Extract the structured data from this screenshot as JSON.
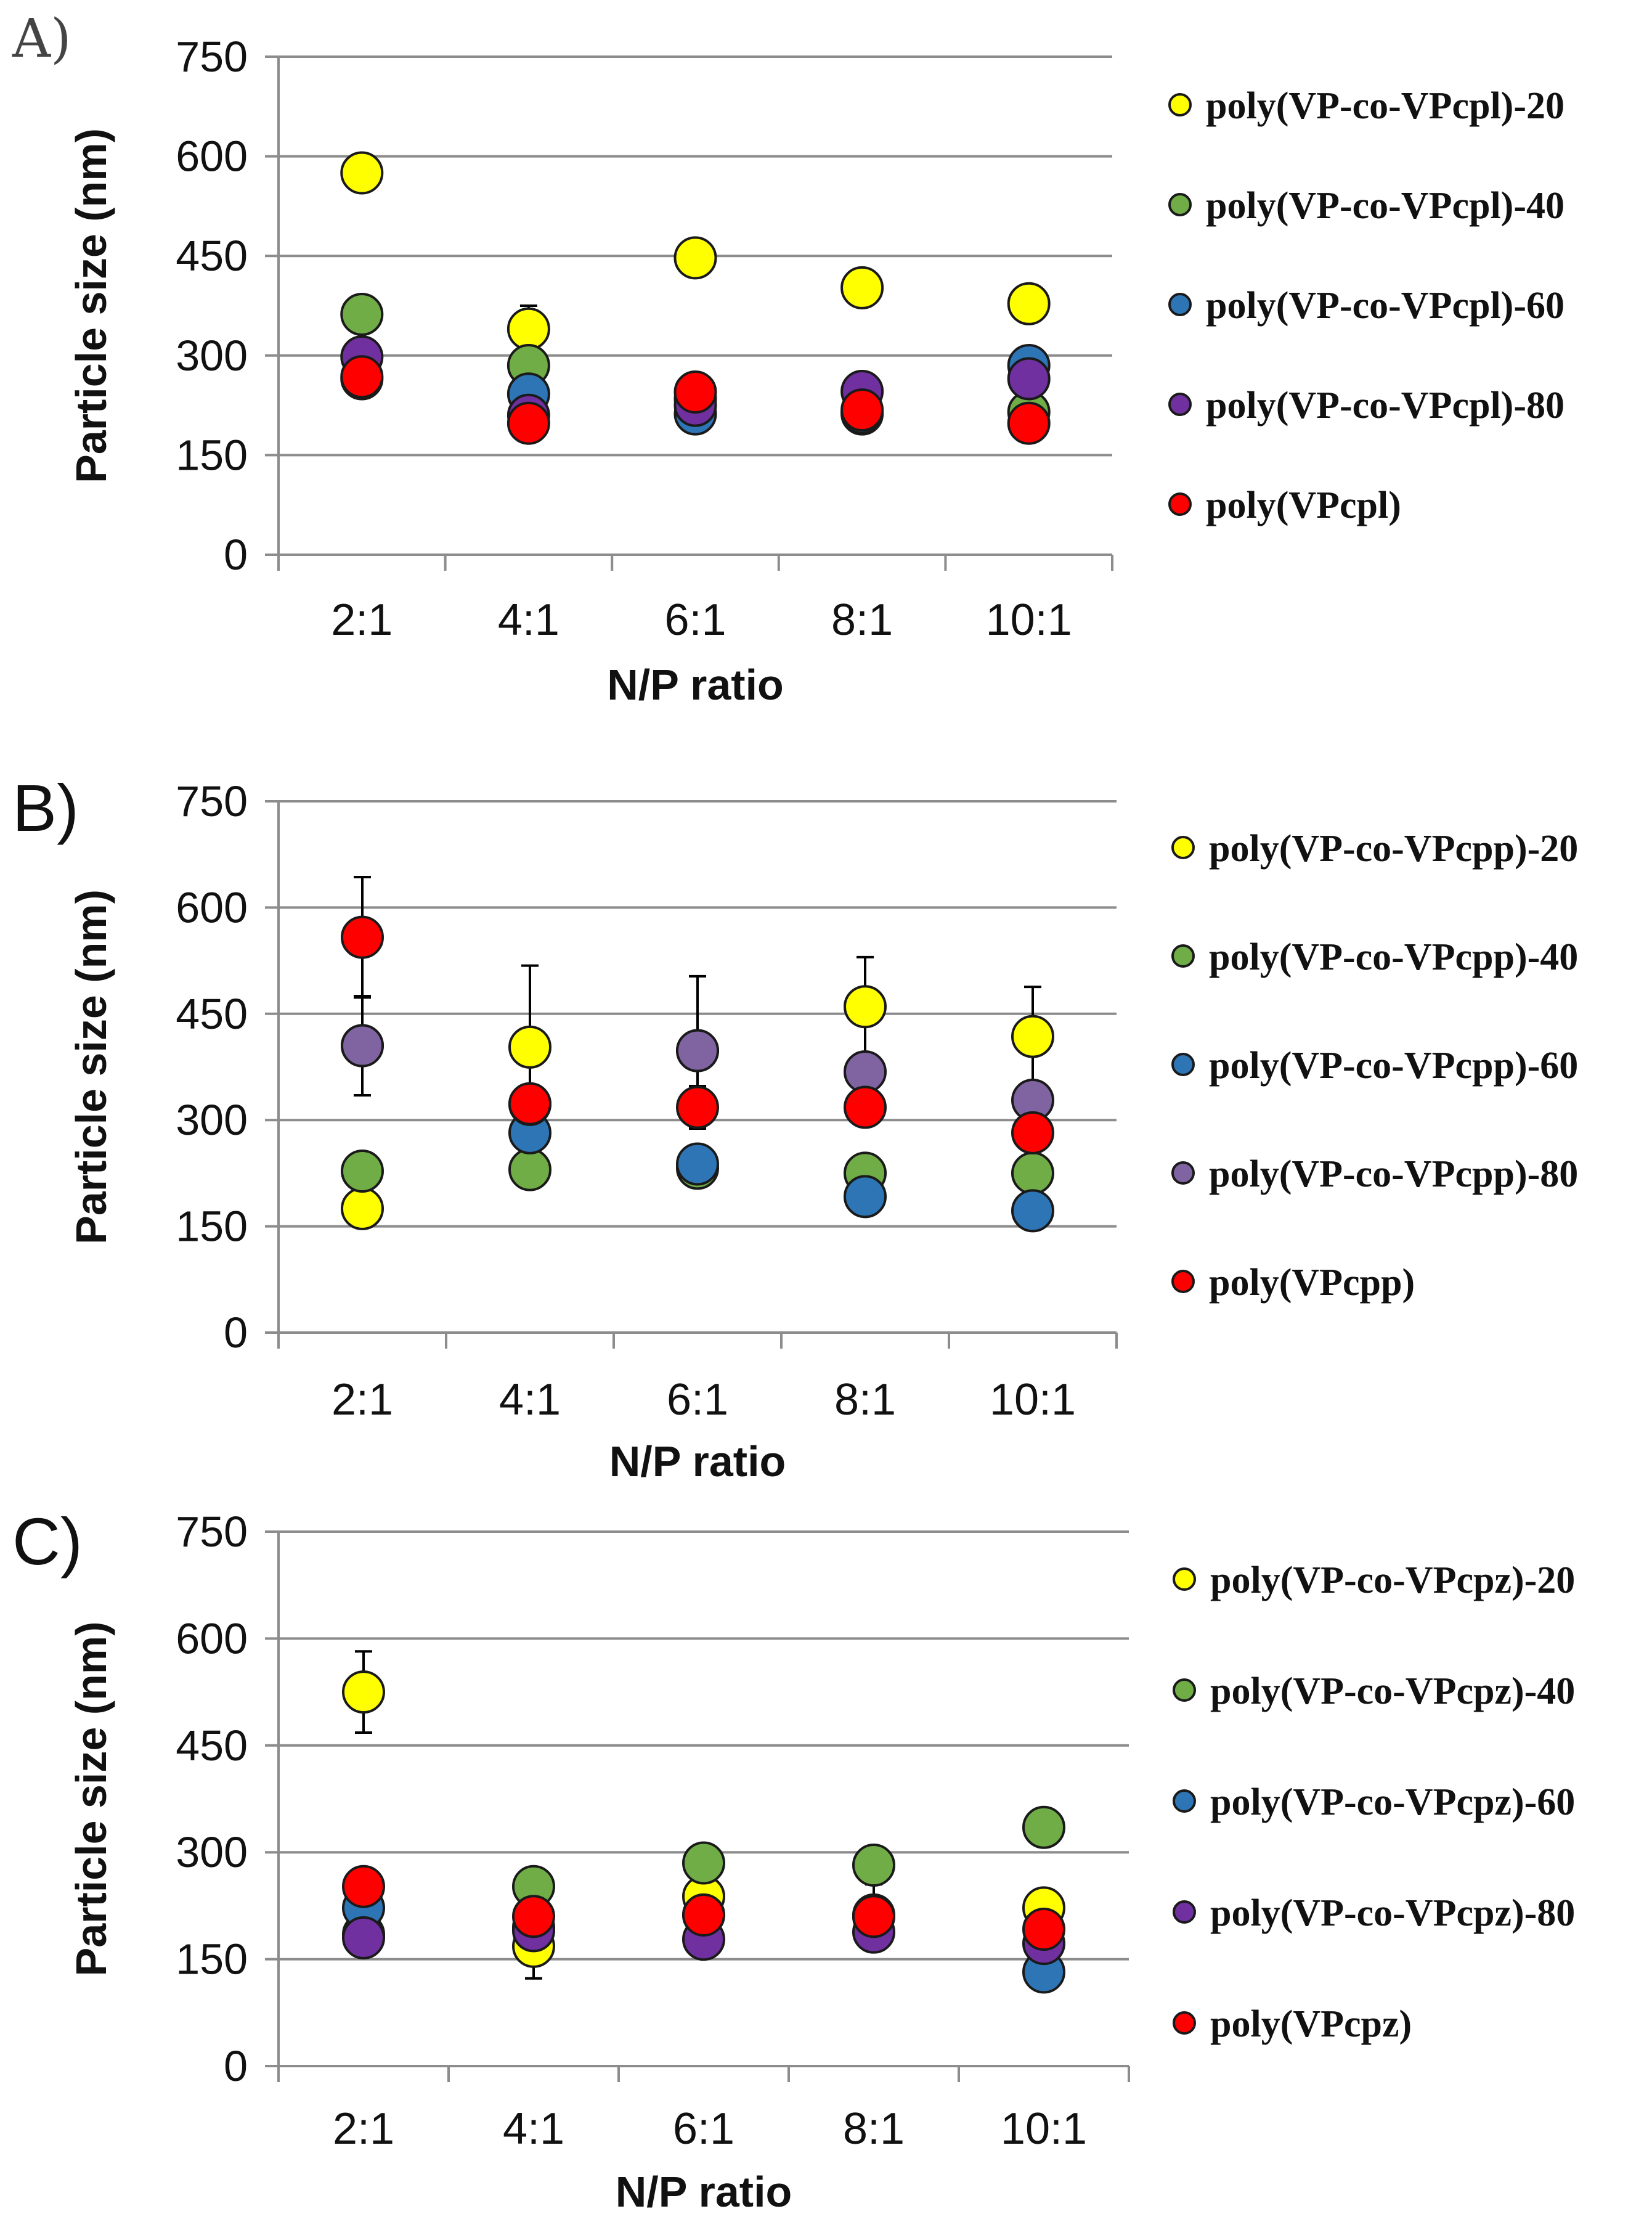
{
  "chart_data": [
    {
      "type": "scatter",
      "panel_label": "A)",
      "xlabel": "N/P ratio",
      "ylabel": "Particle size (nm)",
      "categories": [
        "2:1",
        "4:1",
        "6:1",
        "8:1",
        "10:1"
      ],
      "ylim": [
        0,
        750
      ],
      "yticks": [
        0,
        150,
        300,
        450,
        600,
        750
      ],
      "grid": true,
      "legend_position": "right",
      "series": [
        {
          "name": "poly(VP-co-VPcpl)-20",
          "color": "#ffff00",
          "values": [
            575,
            340,
            447,
            402,
            378
          ],
          "errors": [
            0,
            35,
            0,
            18,
            0
          ]
        },
        {
          "name": "poly(VP-co-VPcpl)-40",
          "color": "#70ad47",
          "values": [
            362,
            285,
            235,
            212,
            215
          ],
          "errors": [
            0,
            0,
            0,
            0,
            0
          ]
        },
        {
          "name": "poly(VP-co-VPcpl)-60",
          "color": "#2e75b6",
          "values": [
            265,
            242,
            212,
            214,
            285
          ],
          "errors": [
            0,
            0,
            0,
            0,
            0
          ]
        },
        {
          "name": "poly(VP-co-VPcpl)-80",
          "color": "#7030a0",
          "values": [
            298,
            210,
            225,
            246,
            265
          ],
          "errors": [
            0,
            0,
            0,
            0,
            0
          ]
        },
        {
          "name": "poly(VPcpl)",
          "color": "#ff0000",
          "values": [
            268,
            198,
            245,
            218,
            198
          ],
          "errors": [
            0,
            0,
            25,
            0,
            0
          ]
        }
      ]
    },
    {
      "type": "scatter",
      "panel_label": "B)",
      "xlabel": "N/P ratio",
      "ylabel": "Particle size (nm)",
      "categories": [
        "2:1",
        "4:1",
        "6:1",
        "8:1",
        "10:1"
      ],
      "ylim": [
        0,
        750
      ],
      "yticks": [
        0,
        150,
        300,
        450,
        600,
        750
      ],
      "grid": true,
      "legend_position": "right",
      "series": [
        {
          "name": "poly(VP-co-VPcpp)-20",
          "color": "#ffff00",
          "values": [
            175,
            403,
            398,
            460,
            418
          ],
          "errors": [
            0,
            115,
            105,
            70,
            70
          ]
        },
        {
          "name": "poly(VP-co-VPcpp)-40",
          "color": "#70ad47",
          "values": [
            228,
            230,
            232,
            225,
            225
          ],
          "errors": [
            0,
            0,
            0,
            0,
            0
          ]
        },
        {
          "name": "poly(VP-co-VPcpp)-60",
          "color": "#2e75b6",
          "values": [
            405,
            282,
            238,
            192,
            172
          ],
          "errors": [
            70,
            0,
            0,
            0,
            0
          ]
        },
        {
          "name": "poly(VP-co-VPcpp)-80",
          "color": "#8064a2",
          "values": [
            405,
            322,
            398,
            368,
            328
          ],
          "errors": [
            70,
            0,
            0,
            0,
            0
          ]
        },
        {
          "name": "poly(VPcpp)",
          "color": "#ff0000",
          "values": [
            558,
            323,
            318,
            318,
            282
          ],
          "errors": [
            85,
            0,
            30,
            0,
            0
          ]
        }
      ]
    },
    {
      "type": "scatter",
      "panel_label": "C)",
      "xlabel": "N/P ratio",
      "ylabel": "Particle size (nm)",
      "categories": [
        "2:1",
        "4:1",
        "6:1",
        "8:1",
        "10:1"
      ],
      "ylim": [
        0,
        750
      ],
      "yticks": [
        0,
        150,
        300,
        450,
        600,
        750
      ],
      "grid": true,
      "legend_position": "right",
      "series": [
        {
          "name": "poly(VP-co-VPcpz)-20",
          "color": "#ffff00",
          "values": [
            525,
            168,
            238,
            210,
            222
          ],
          "errors": [
            57,
            45,
            0,
            45,
            0
          ]
        },
        {
          "name": "poly(VP-co-VPcpz)-40",
          "color": "#70ad47",
          "values": [
            185,
            252,
            285,
            282,
            335
          ],
          "errors": [
            0,
            0,
            0,
            0,
            0
          ]
        },
        {
          "name": "poly(VP-co-VPcpz)-60",
          "color": "#2e75b6",
          "values": [
            222,
            195,
            212,
            212,
            132
          ],
          "errors": [
            0,
            0,
            0,
            0,
            0
          ]
        },
        {
          "name": "poly(VP-co-VPcpz)-80",
          "color": "#7030a0",
          "values": [
            180,
            190,
            178,
            188,
            172
          ],
          "errors": [
            0,
            0,
            0,
            0,
            0
          ]
        },
        {
          "name": "poly(VPcpz)",
          "color": "#ff0000",
          "values": [
            252,
            210,
            212,
            210,
            192
          ],
          "errors": [
            0,
            0,
            0,
            0,
            0
          ]
        }
      ]
    }
  ]
}
